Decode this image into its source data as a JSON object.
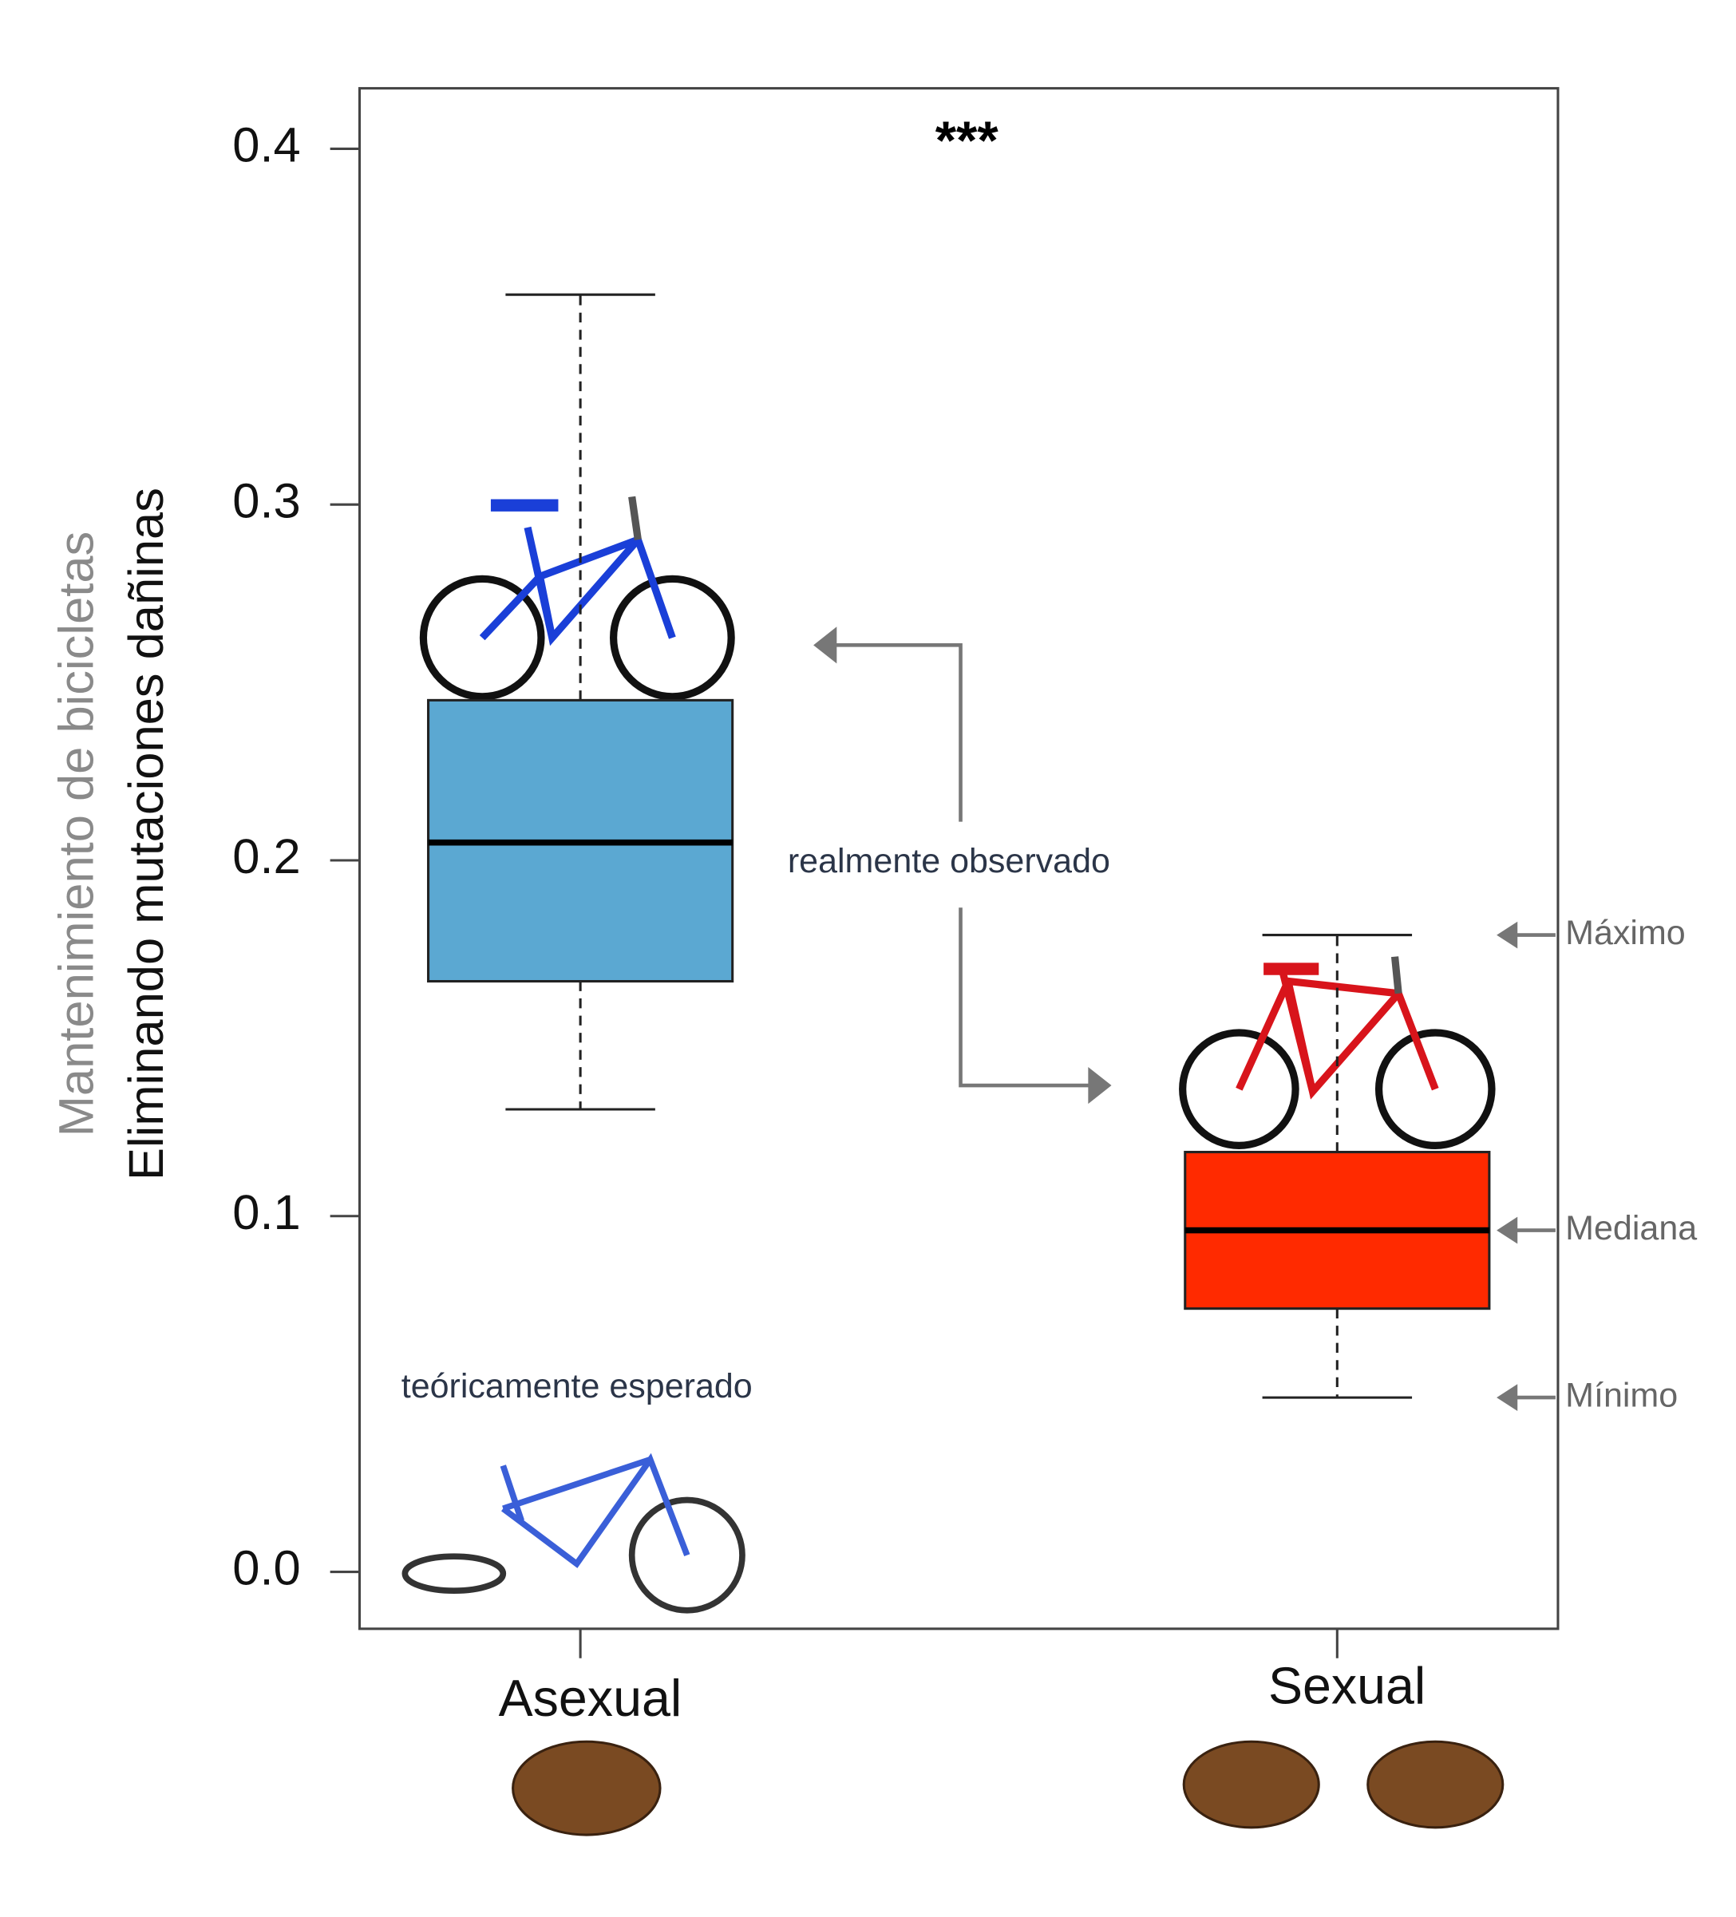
{
  "chart_data": {
    "type": "boxplot",
    "y_label_top": "Mantenimiento de bicicletas",
    "y_label": "Eliminando mutaciones dañinas",
    "categories": [
      "Asexual",
      "Sexual"
    ],
    "boxes": [
      {
        "min": 0.13,
        "q1": 0.166,
        "median": 0.205,
        "q3": 0.245,
        "max": 0.359,
        "color": "#5ba8d2"
      },
      {
        "min": 0.049,
        "q1": 0.074,
        "median": 0.096,
        "q3": 0.118,
        "max": 0.179,
        "color": "#ff2a00"
      }
    ],
    "ylim": [
      -0.016,
      0.417
    ],
    "yticks": [
      {
        "value": 0,
        "label": "0.0"
      },
      0.1,
      0.2,
      0.3,
      0.4
    ],
    "annotations": {
      "significance": "***",
      "observed": "realmente observado",
      "expected": "teóricamente esperado",
      "max_label": "Máximo",
      "median_label": "Mediana",
      "min_label": "Mínimo"
    }
  }
}
